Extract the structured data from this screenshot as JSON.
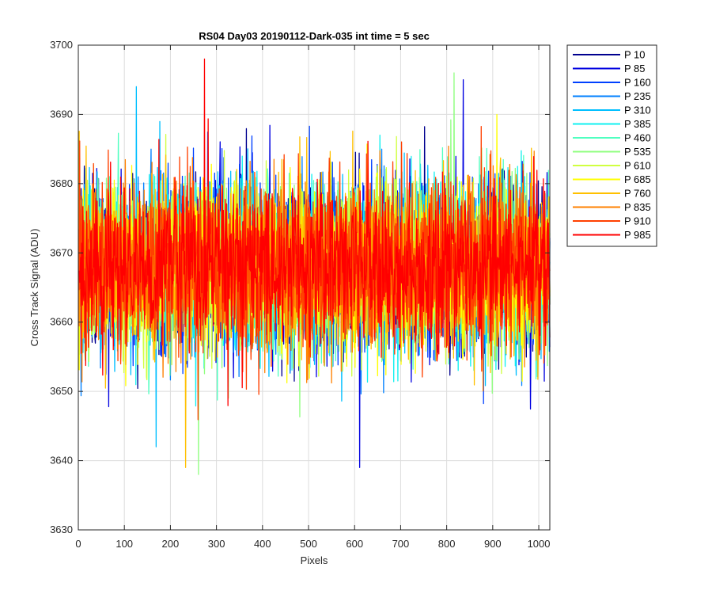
{
  "chart_data": {
    "type": "line",
    "title": "RS04 Day03 20190112-Dark-035 int time = 5 sec",
    "xlabel": "Pixels",
    "ylabel": "Cross Track Signal (ADU)",
    "xlim": [
      0,
      1024
    ],
    "ylim": [
      3630,
      3700
    ],
    "xticks": [
      "0",
      "100",
      "200",
      "300",
      "400",
      "500",
      "600",
      "700",
      "800",
      "900",
      "1000"
    ],
    "yticks": [
      "3630",
      "3640",
      "3650",
      "3660",
      "3670",
      "3680",
      "3690",
      "3700"
    ],
    "grid": true,
    "legend_position": "outside-right-top",
    "noise_model": {
      "mean": 3668,
      "spread": 6,
      "points_per_series": 1024
    },
    "annotated_extremes": [
      {
        "series": "P 985",
        "x": 273,
        "y": 3698
      },
      {
        "series": "P 535",
        "x": 815,
        "y": 3696
      },
      {
        "series": "P 85",
        "x": 835,
        "y": 3695
      },
      {
        "series": "P 310",
        "x": 125,
        "y": 3694
      },
      {
        "series": "P 85",
        "x": 610,
        "y": 3639
      },
      {
        "series": "P 760",
        "x": 232,
        "y": 3639
      },
      {
        "series": "P 535",
        "x": 260,
        "y": 3638
      },
      {
        "series": "P 310",
        "x": 168,
        "y": 3642
      }
    ],
    "series": [
      {
        "name": "P 10",
        "color": "#00008f",
        "seed": 10
      },
      {
        "name": "P 85",
        "color": "#0000e0",
        "seed": 85
      },
      {
        "name": "P 160",
        "color": "#0040ff",
        "seed": 160
      },
      {
        "name": "P 235",
        "color": "#0080ff",
        "seed": 235
      },
      {
        "name": "P 310",
        "color": "#00bfff",
        "seed": 310
      },
      {
        "name": "P 385",
        "color": "#10f0f0",
        "seed": 385
      },
      {
        "name": "P 460",
        "color": "#50ffc0",
        "seed": 460
      },
      {
        "name": "P 535",
        "color": "#90ff80",
        "seed": 535
      },
      {
        "name": "P 610",
        "color": "#d0ff40",
        "seed": 610
      },
      {
        "name": "P 685",
        "color": "#ffff00",
        "seed": 685
      },
      {
        "name": "P 760",
        "color": "#ffc000",
        "seed": 760
      },
      {
        "name": "P 835",
        "color": "#ff8000",
        "seed": 835
      },
      {
        "name": "P 910",
        "color": "#ff4000",
        "seed": 910
      },
      {
        "name": "P 985",
        "color": "#ff0000",
        "seed": 985
      }
    ]
  }
}
